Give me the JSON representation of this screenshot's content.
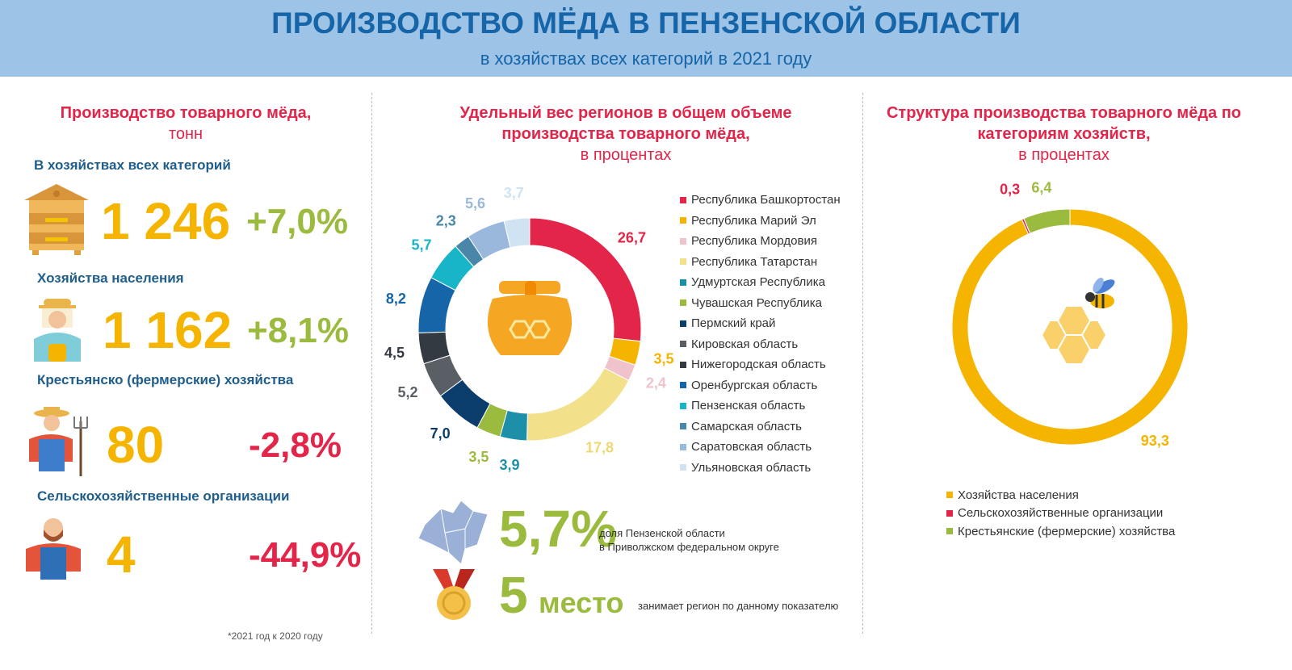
{
  "header": {
    "title": "ПРОИЗВОДСТВО МЁДА В ПЕНЗЕНСКОЙ ОБЛАСТИ",
    "subtitle": "в хозяйствах всех категорий в 2021 году"
  },
  "left": {
    "title": "Производство товарного мёда,",
    "unit": "тонн",
    "footnote": "*2021 год к 2020 году",
    "items": [
      {
        "category": "В хозяйствах всех категорий",
        "value": "1 246",
        "change": "+7,0%",
        "color": "#9bbb3e",
        "icon": "beehive-icon"
      },
      {
        "category": "Хозяйства населения",
        "value": "1 162",
        "change": "+8,1%",
        "color": "#9bbb3e",
        "icon": "beekeeper-icon"
      },
      {
        "category": "Крестьянско (фермерские) хозяйства",
        "value": "80",
        "change": "-2,8%",
        "color": "#e3254a",
        "icon": "farmer-pitchfork-icon"
      },
      {
        "category": "Сельскохозяйственные организации",
        "value": "4",
        "change": "-44,9%",
        "color": "#e3254a",
        "icon": "farmer-icon"
      }
    ]
  },
  "middle": {
    "stat_share": "5,7%",
    "stat_share_text1": "доля Пензенской области",
    "stat_share_text2": "в Приволжском федеральном округе",
    "stat_rank": "5",
    "stat_rank_word": "место",
    "stat_rank_text": "занимает регион по данному показателю"
  },
  "chart_data": [
    {
      "type": "pie",
      "title": "Удельный вес регионов в общем объеме производства товарного мёда,",
      "subtitle": "в процентах",
      "legend": "right",
      "categories": [
        "Республика Башкортостан",
        "Республика Марий Эл",
        "Республика Мордовия",
        "Республика Татарстан",
        "Удмуртская Республика",
        "Чувашская Республика",
        "Пермский край",
        "Кировская область",
        "Нижегородская область",
        "Оренбургская область",
        "Пензенская область",
        "Самарская область",
        "Саратовская область",
        "Ульяновская область"
      ],
      "values": [
        26.7,
        3.5,
        2.4,
        17.8,
        3.9,
        3.5,
        7.0,
        5.2,
        4.5,
        8.2,
        5.7,
        2.3,
        5.6,
        3.7
      ],
      "labels": [
        "26,7",
        "3,5",
        "2,4",
        "17,8",
        "3,9",
        "3,5",
        "7,0",
        "5,2",
        "4,5",
        "8,2",
        "5,7",
        "2,3",
        "5,6",
        "3,7"
      ],
      "colors": [
        "#e3254a",
        "#f5b400",
        "#f0c3cc",
        "#f3e08a",
        "#1e8fa8",
        "#9bbb3e",
        "#0b3d6b",
        "#5a5f66",
        "#333a42",
        "#1565a8",
        "#18b5c9",
        "#4a86a8",
        "#9ab8db",
        "#cfe3f3"
      ],
      "label_colors": [
        "#e3254a",
        "#f5b400",
        "#f0c3cc",
        "#f0d870",
        "#1e8fa8",
        "#9bbb3e",
        "#0b3d6b",
        "#5a5f66",
        "#333a42",
        "#1565a8",
        "#18b5c9",
        "#4a86a8",
        "#9ab8db",
        "#cfe3f3"
      ]
    },
    {
      "type": "pie",
      "title": "Структура производства товарного мёда по категориям хозяйств,",
      "subtitle": "в процентах",
      "legend": "bottom",
      "categories": [
        "Хозяйства населения",
        "Сельскохозяйственные организации",
        "Крестьянские (фермерские) хозяйства"
      ],
      "values": [
        93.3,
        0.3,
        6.4
      ],
      "labels": [
        "93,3",
        "0,3",
        "6,4"
      ],
      "colors": [
        "#f5b400",
        "#e3254a",
        "#9bbb3e"
      ]
    }
  ]
}
